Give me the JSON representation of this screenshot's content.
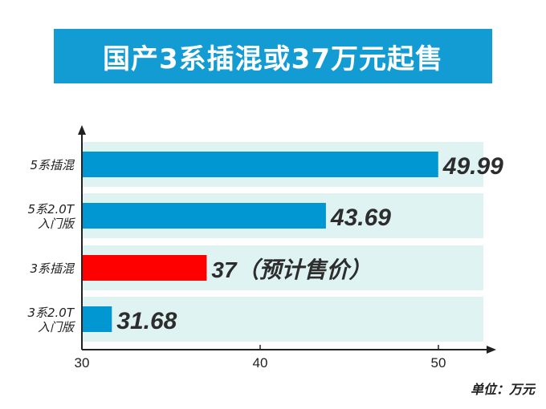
{
  "header": {
    "title": "国产3系插混或37万元起售"
  },
  "unit_label": "单位：万元",
  "colors": {
    "banner": "#139bd4",
    "bar": "#0097d3",
    "highlight_bar": "#ff0000",
    "row_band": "#dff3f3"
  },
  "chart_data": {
    "type": "bar",
    "orientation": "horizontal",
    "title": "国产3系插混或37万元起售",
    "xlabel": "",
    "ylabel": "",
    "categories": [
      "5系插混",
      "5系2.0T入门版",
      "3系插混",
      "3系2.0T入门版"
    ],
    "category_lines": [
      [
        "5系插混"
      ],
      [
        "5系2.0T",
        "入门版"
      ],
      [
        "3系插混"
      ],
      [
        "3系2.0T",
        "入门版"
      ]
    ],
    "values": [
      49.99,
      43.69,
      37,
      31.68
    ],
    "data_labels": [
      "49.99",
      "43.69",
      "37（预计售价）",
      "31.68"
    ],
    "highlight_index": 2,
    "xticks": [
      30,
      40,
      50
    ],
    "xlim": [
      30,
      52.5
    ],
    "grid": false,
    "unit": "单位：万元"
  }
}
